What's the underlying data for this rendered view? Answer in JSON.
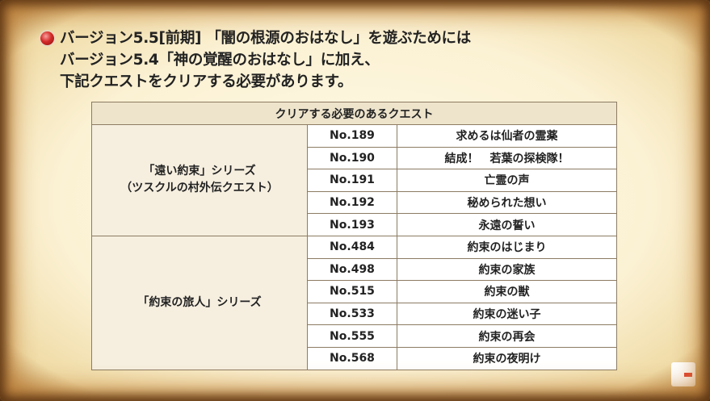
{
  "heading": {
    "lines": [
      "バージョン5.5[前期] 「闇の根源のおはなし」を遊ぶためには",
      "バージョン5.4「神の覚醒のおはなし」に加え、",
      "下記クエストをクリアする必要があります。"
    ]
  },
  "table": {
    "header": "クリアする必要のあるクエスト",
    "groups": [
      {
        "label": [
          "「遠い約束」シリーズ",
          "（ツスクルの村外伝クエスト）"
        ],
        "rows": [
          [
            "No.189",
            "求めるは仙者の霊薬"
          ],
          [
            "No.190",
            "結成！　若葉の探検隊！"
          ],
          [
            "No.191",
            "亡霊の声"
          ],
          [
            "No.192",
            "秘められた想い"
          ],
          [
            "No.193",
            "永遠の誓い"
          ]
        ]
      },
      {
        "label": [
          "「約束の旅人」シリーズ"
        ],
        "rows": [
          [
            "No.484",
            "約束のはじまり"
          ],
          [
            "No.498",
            "約束の家族"
          ],
          [
            "No.515",
            "約束の獣"
          ],
          [
            "No.533",
            "約束の迷い子"
          ],
          [
            "No.555",
            "約束の再会"
          ],
          [
            "No.568",
            "約束の夜明け"
          ]
        ]
      }
    ]
  }
}
